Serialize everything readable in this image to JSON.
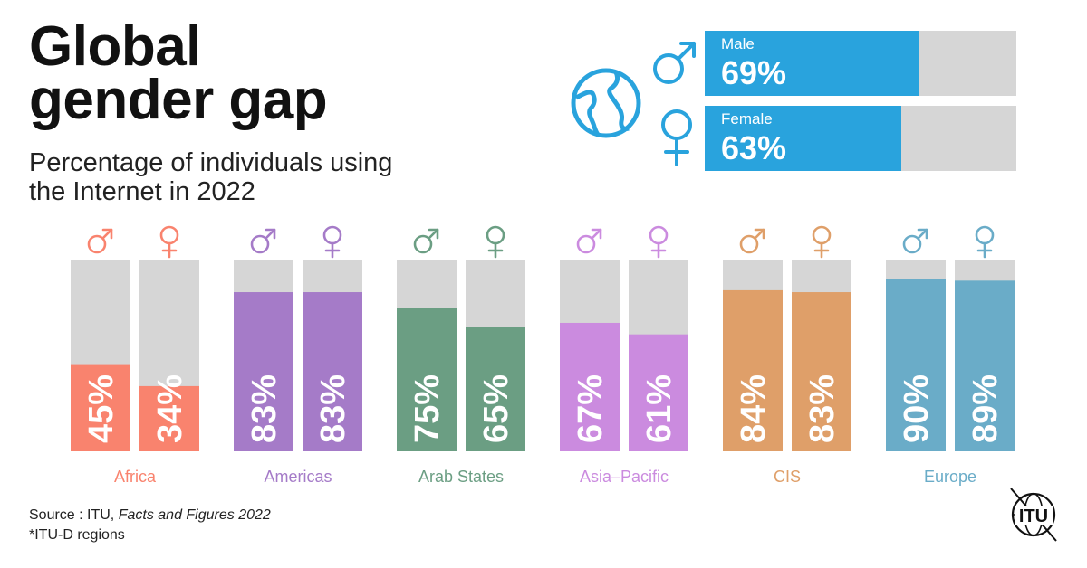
{
  "title": {
    "line1": "Global",
    "line2": "gender gap"
  },
  "subtitle": {
    "line1": "Percentage of individuals using",
    "line2": "the Internet in 2022"
  },
  "global": {
    "male": {
      "label": "Male",
      "value": 69,
      "display": "69%"
    },
    "female": {
      "label": "Female",
      "value": 63,
      "display": "63%"
    },
    "color": "#29a3dd",
    "track_color": "#d6d6d6"
  },
  "chart_data": {
    "type": "bar",
    "title": "Percentage of individuals using the Internet in 2022",
    "categories": [
      "Africa",
      "Americas",
      "Arab States",
      "Asia–Pacific",
      "CIS",
      "Europe"
    ],
    "series": [
      {
        "name": "Male",
        "symbol": "♂",
        "values": [
          45,
          83,
          75,
          67,
          84,
          90
        ]
      },
      {
        "name": "Female",
        "symbol": "♀",
        "values": [
          34,
          83,
          65,
          61,
          83,
          89
        ]
      }
    ],
    "labels": [
      [
        "45%",
        "34%"
      ],
      [
        "83%",
        "83%"
      ],
      [
        "75%",
        "65%"
      ],
      [
        "67%",
        "61%"
      ],
      [
        "84%",
        "83%"
      ],
      [
        "90%",
        "89%"
      ]
    ],
    "colors": [
      "#f9836e",
      "#a57bc8",
      "#6b9e83",
      "#cb8bdf",
      "#df9f69",
      "#6aacc8"
    ],
    "track_color": "#d6d6d6",
    "ylim": [
      0,
      100
    ],
    "xlabel": "",
    "ylabel": ""
  },
  "source": {
    "prefix": "Source : ITU, ",
    "italic": "Facts and Figures 2022",
    "note": "*ITU-D regions"
  },
  "logo": {
    "text": "ITU"
  }
}
